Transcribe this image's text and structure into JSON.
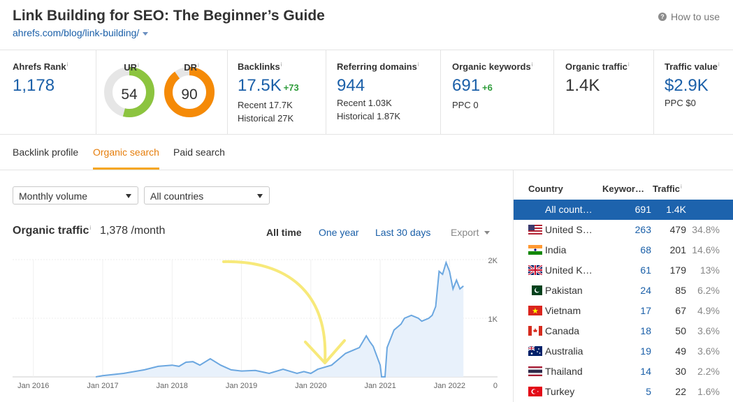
{
  "page": {
    "title": "Link Building for SEO: The Beginner’s Guide",
    "url": "ahrefs.com/blog/link-building/",
    "how_to_use": "How to use",
    "info_mark": "i"
  },
  "metrics": {
    "ahrefs_rank": {
      "label": "Ahrefs Rank",
      "value": "1,178"
    },
    "ur": {
      "label": "UR",
      "value": "54",
      "level": 54,
      "color": "#8cc43f"
    },
    "dr": {
      "label": "DR",
      "value": "90",
      "level": 90,
      "color": "#f58a07"
    },
    "backlinks": {
      "label": "Backlinks",
      "value": "17.5K",
      "delta": "+73",
      "recent": "Recent 17.7K",
      "historical": "Historical 27K"
    },
    "referring_domains": {
      "label": "Referring domains",
      "value": "944",
      "recent": "Recent 1.03K",
      "historical": "Historical 1.87K"
    },
    "organic_keywords": {
      "label": "Organic keywords",
      "value": "691",
      "delta": "+6",
      "ppc": "PPC 0"
    },
    "organic_traffic": {
      "label": "Organic traffic",
      "value": "1.4K"
    },
    "traffic_value": {
      "label": "Traffic value",
      "value": "$2.9K",
      "ppc": "PPC $0"
    }
  },
  "tabs": [
    {
      "label": "Backlink profile",
      "active": false
    },
    {
      "label": "Organic search",
      "active": true
    },
    {
      "label": "Paid search",
      "active": false
    }
  ],
  "filters": {
    "volume": "Monthly volume",
    "countries": "All countries"
  },
  "organic_traffic_header": {
    "title": "Organic traffic",
    "value": "1,378 /month",
    "ranges": [
      "All time",
      "One year",
      "Last 30 days"
    ],
    "active_range": "All time",
    "export": "Export"
  },
  "chart_data": {
    "type": "area",
    "x_ticks": [
      "Jan 2016",
      "Jan 2017",
      "Jan 2018",
      "Jan 2019",
      "Jan 2020",
      "Jan 2021",
      "Jan 2022"
    ],
    "y_ticks": [
      "2K",
      "1K",
      "0"
    ],
    "ylim": [
      0,
      2000
    ],
    "grid": true,
    "series": [
      {
        "color": "#6ba7e0",
        "points": [
          [
            2016.9,
            0
          ],
          [
            2017.0,
            20
          ],
          [
            2017.3,
            60
          ],
          [
            2017.6,
            120
          ],
          [
            2017.8,
            180
          ],
          [
            2018.0,
            200
          ],
          [
            2018.1,
            180
          ],
          [
            2018.2,
            250
          ],
          [
            2018.3,
            260
          ],
          [
            2018.4,
            200
          ],
          [
            2018.55,
            310
          ],
          [
            2018.7,
            200
          ],
          [
            2018.85,
            120
          ],
          [
            2019.0,
            100
          ],
          [
            2019.2,
            110
          ],
          [
            2019.4,
            60
          ],
          [
            2019.6,
            130
          ],
          [
            2019.8,
            60
          ],
          [
            2019.9,
            90
          ],
          [
            2020.0,
            60
          ],
          [
            2020.1,
            130
          ],
          [
            2020.3,
            200
          ],
          [
            2020.5,
            400
          ],
          [
            2020.7,
            500
          ],
          [
            2020.8,
            700
          ],
          [
            2020.85,
            600
          ],
          [
            2020.9,
            520
          ],
          [
            2021.0,
            200
          ],
          [
            2021.02,
            0
          ],
          [
            2021.07,
            0
          ],
          [
            2021.1,
            500
          ],
          [
            2021.2,
            800
          ],
          [
            2021.3,
            900
          ],
          [
            2021.35,
            1000
          ],
          [
            2021.45,
            1050
          ],
          [
            2021.55,
            1000
          ],
          [
            2021.6,
            950
          ],
          [
            2021.7,
            1000
          ],
          [
            2021.75,
            1050
          ],
          [
            2021.8,
            1200
          ],
          [
            2021.85,
            1800
          ],
          [
            2021.9,
            1750
          ],
          [
            2021.95,
            1950
          ],
          [
            2022.0,
            1800
          ],
          [
            2022.05,
            1500
          ],
          [
            2022.1,
            1650
          ],
          [
            2022.15,
            1500
          ],
          [
            2022.2,
            1550
          ]
        ]
      }
    ]
  },
  "countries_table": {
    "headers": {
      "country": "Country",
      "keywords": "Keywor…",
      "traffic": "Traffic"
    },
    "rows": [
      {
        "flag": "none",
        "name": "All count…",
        "keywords": "691",
        "traffic": "1.4K",
        "share": "",
        "selected": true
      },
      {
        "flag": "us",
        "name": "United S…",
        "keywords": "263",
        "traffic": "479",
        "share": "34.8%"
      },
      {
        "flag": "in",
        "name": "India",
        "keywords": "68",
        "traffic": "201",
        "share": "14.6%"
      },
      {
        "flag": "gb",
        "name": "United K…",
        "keywords": "61",
        "traffic": "179",
        "share": "13%"
      },
      {
        "flag": "pk",
        "name": "Pakistan",
        "keywords": "24",
        "traffic": "85",
        "share": "6.2%"
      },
      {
        "flag": "vn",
        "name": "Vietnam",
        "keywords": "17",
        "traffic": "67",
        "share": "4.9%"
      },
      {
        "flag": "ca",
        "name": "Canada",
        "keywords": "18",
        "traffic": "50",
        "share": "3.6%"
      },
      {
        "flag": "au",
        "name": "Australia",
        "keywords": "19",
        "traffic": "49",
        "share": "3.6%"
      },
      {
        "flag": "th",
        "name": "Thailand",
        "keywords": "14",
        "traffic": "30",
        "share": "2.2%"
      },
      {
        "flag": "tr",
        "name": "Turkey",
        "keywords": "5",
        "traffic": "22",
        "share": "1.6%"
      }
    ]
  }
}
